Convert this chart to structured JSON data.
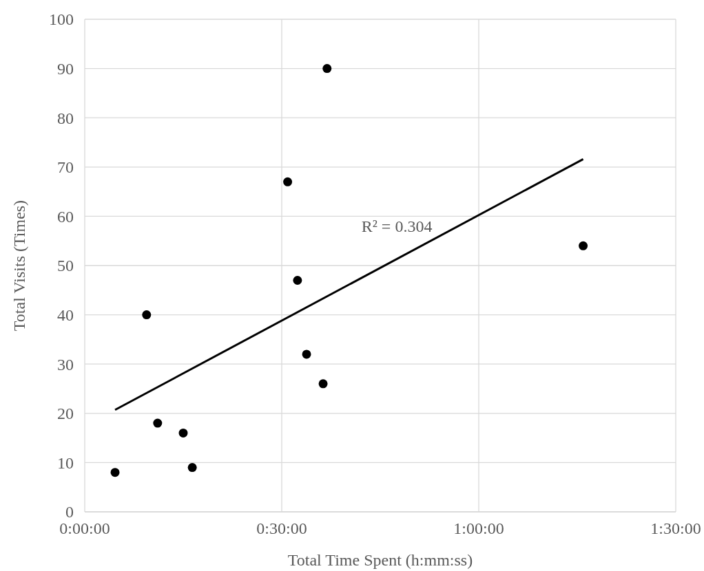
{
  "chart_data": {
    "type": "scatter",
    "xlabel": "Total Time Spent (h:mm:ss)",
    "ylabel": "Total Visits (Times)",
    "xlim": [
      0,
      1.5
    ],
    "xticks": [
      {
        "value": 0,
        "label": "0:00:00"
      },
      {
        "value": 0.5,
        "label": "0:30:00"
      },
      {
        "value": 1,
        "label": "1:00:00"
      },
      {
        "value": 1.5,
        "label": "1:30:00"
      }
    ],
    "ylim": [
      0,
      100
    ],
    "yticks": [
      0,
      10,
      20,
      30,
      40,
      50,
      60,
      70,
      80,
      90,
      100
    ],
    "grid": true,
    "series": [
      {
        "marker": "circle",
        "color": "#000000",
        "x": [
          0.077,
          0.157,
          0.185,
          0.25,
          0.273,
          0.515,
          0.54,
          0.563,
          0.605,
          0.615,
          1.265
        ],
        "values": [
          8,
          40,
          18,
          16,
          9,
          67,
          47,
          32,
          26,
          90,
          54
        ]
      },
      {
        "type": "line",
        "color": "#000000",
        "x": [
          0.077,
          1.265
        ],
        "values": [
          20.7,
          71.6
        ]
      }
    ],
    "annotations": [
      "R² = 0.304"
    ]
  }
}
